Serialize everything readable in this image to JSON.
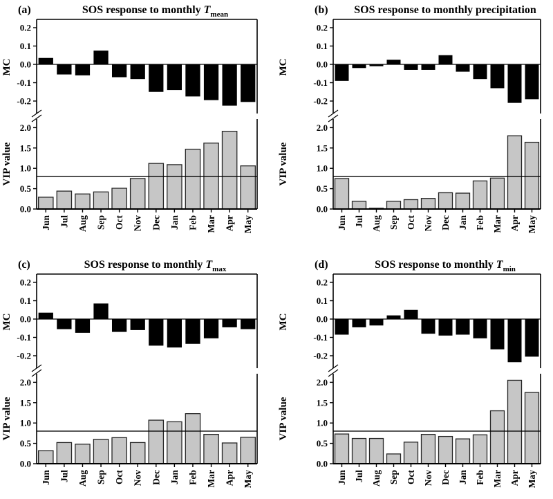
{
  "figure": {
    "description": "Four-panel bar chart figure: SOS response (MC and VIP value) to monthly climate variables",
    "colors": {
      "mc_bar": "#000000",
      "vip_bar_fill": "#c6c6c6",
      "vip_bar_stroke": "#262626",
      "axis": "#000000",
      "threshold_line": "#000000",
      "background": "#ffffff"
    }
  },
  "chart_data": [
    {
      "type": "bar",
      "panel_label": "(a)",
      "title": "SOS response to monthly",
      "title_math": {
        "var": "T",
        "sub": "mean"
      },
      "categories": [
        "Jun",
        "Jul",
        "Aug",
        "Sep",
        "Oct",
        "Nov",
        "Dec",
        "Jan",
        "Feb",
        "Mar",
        "Apr",
        "May"
      ],
      "axis_break": true,
      "legend": "none",
      "series": [
        {
          "name": "MC",
          "axis_label": "MC",
          "values": [
            0.035,
            -0.055,
            -0.06,
            0.075,
            -0.07,
            -0.08,
            -0.15,
            -0.14,
            -0.175,
            -0.195,
            -0.225,
            -0.205
          ],
          "ylim": [
            -0.25,
            0.25
          ],
          "ticks": [
            {
              "value": 0.2,
              "label": "0.2"
            },
            {
              "value": 0.1,
              "label": "0.1"
            },
            {
              "value": 0.0,
              "label": "0.0"
            },
            {
              "value": -0.1,
              "label": "-0.1"
            },
            {
              "value": -0.2,
              "label": "-0.2"
            }
          ]
        },
        {
          "name": "VIP value",
          "axis_label": "VIP value",
          "values": [
            0.29,
            0.44,
            0.37,
            0.42,
            0.51,
            0.75,
            1.12,
            1.09,
            1.47,
            1.62,
            1.91,
            1.06
          ],
          "ylim": [
            0,
            2.2
          ],
          "ref_line": 0.8,
          "ticks": [
            {
              "value": 2.0,
              "label": "2.0"
            },
            {
              "value": 1.5,
              "label": "1.5"
            },
            {
              "value": 1.0,
              "label": "1.0"
            },
            {
              "value": 0.5,
              "label": "0.5"
            },
            {
              "value": 0.0,
              "label": "0.0"
            }
          ]
        }
      ]
    },
    {
      "type": "bar",
      "panel_label": "(b)",
      "title": "SOS response to monthly precipitation",
      "title_math": null,
      "categories": [
        "Jun",
        "Jul",
        "Aug",
        "Sep",
        "Oct",
        "Nov",
        "Dec",
        "Jan",
        "Feb",
        "Mar",
        "Apr",
        "May"
      ],
      "axis_break": true,
      "legend": "none",
      "series": [
        {
          "name": "MC",
          "axis_label": "MC",
          "values": [
            -0.09,
            -0.02,
            -0.01,
            0.025,
            -0.03,
            -0.03,
            0.05,
            -0.04,
            -0.08,
            -0.13,
            -0.21,
            -0.19
          ],
          "ylim": [
            -0.25,
            0.25
          ],
          "ticks": [
            {
              "value": 0.2,
              "label": "0.2"
            },
            {
              "value": 0.1,
              "label": "0.1"
            },
            {
              "value": 0.0,
              "label": "0.0"
            },
            {
              "value": -0.1,
              "label": "-0.1"
            },
            {
              "value": -0.2,
              "label": "-0.2"
            }
          ]
        },
        {
          "name": "VIP value",
          "axis_label": "VIP value",
          "values": [
            0.75,
            0.19,
            0.02,
            0.19,
            0.23,
            0.26,
            0.4,
            0.39,
            0.69,
            0.76,
            1.8,
            1.64
          ],
          "ylim": [
            0,
            2.2
          ],
          "ref_line": 0.8,
          "ticks": [
            {
              "value": 2.0,
              "label": "2.0"
            },
            {
              "value": 1.5,
              "label": "1.5"
            },
            {
              "value": 1.0,
              "label": "1.0"
            },
            {
              "value": 0.5,
              "label": "0.5"
            },
            {
              "value": 0.0,
              "label": "0.0"
            }
          ]
        }
      ]
    },
    {
      "type": "bar",
      "panel_label": "(c)",
      "title": "SOS response to monthly",
      "title_math": {
        "var": "T",
        "sub": "max"
      },
      "categories": [
        "Jun",
        "Jul",
        "Aug",
        "Sep",
        "Oct",
        "Nov",
        "Dec",
        "Jan",
        "Feb",
        "Mar",
        "Apr",
        "May"
      ],
      "axis_break": true,
      "legend": "none",
      "series": [
        {
          "name": "MC",
          "axis_label": "MC",
          "values": [
            0.035,
            -0.055,
            -0.075,
            0.085,
            -0.07,
            -0.06,
            -0.145,
            -0.155,
            -0.135,
            -0.105,
            -0.045,
            -0.055
          ],
          "ylim": [
            -0.25,
            0.25
          ],
          "ticks": [
            {
              "value": 0.2,
              "label": "0.2"
            },
            {
              "value": 0.1,
              "label": "0.1"
            },
            {
              "value": 0.0,
              "label": "0.0"
            },
            {
              "value": -0.1,
              "label": "-0.1"
            },
            {
              "value": -0.2,
              "label": "-0.2"
            }
          ]
        },
        {
          "name": "VIP value",
          "axis_label": "VIP value",
          "values": [
            0.32,
            0.52,
            0.48,
            0.6,
            0.64,
            0.52,
            1.07,
            1.03,
            1.23,
            0.72,
            0.51,
            0.65
          ],
          "ylim": [
            0,
            2.2
          ],
          "ref_line": 0.8,
          "ticks": [
            {
              "value": 2.0,
              "label": "2.0"
            },
            {
              "value": 1.5,
              "label": "1.5"
            },
            {
              "value": 1.0,
              "label": "1.0"
            },
            {
              "value": 0.5,
              "label": "0.5"
            },
            {
              "value": 0.0,
              "label": "0.0"
            }
          ]
        }
      ]
    },
    {
      "type": "bar",
      "panel_label": "(d)",
      "title": "SOS response to monthly",
      "title_math": {
        "var": "T",
        "sub": "min"
      },
      "categories": [
        "Jun",
        "Jul",
        "Aug",
        "Sep",
        "Oct",
        "Nov",
        "Dec",
        "Jan",
        "Feb",
        "Mar",
        "Apr",
        "May"
      ],
      "axis_break": true,
      "legend": "none",
      "series": [
        {
          "name": "MC",
          "axis_label": "MC",
          "values": [
            -0.085,
            -0.045,
            -0.035,
            0.02,
            0.05,
            -0.08,
            -0.09,
            -0.085,
            -0.105,
            -0.165,
            -0.235,
            -0.205
          ],
          "ylim": [
            -0.25,
            0.25
          ],
          "ticks": [
            {
              "value": 0.2,
              "label": "0.2"
            },
            {
              "value": 0.1,
              "label": "0.1"
            },
            {
              "value": 0.0,
              "label": "0.0"
            },
            {
              "value": -0.1,
              "label": "-0.1"
            },
            {
              "value": -0.2,
              "label": "-0.2"
            }
          ]
        },
        {
          "name": "VIP value",
          "axis_label": "VIP value",
          "values": [
            0.73,
            0.62,
            0.62,
            0.24,
            0.53,
            0.72,
            0.67,
            0.61,
            0.71,
            1.3,
            2.05,
            1.75
          ],
          "ylim": [
            0,
            2.2
          ],
          "ref_line": 0.8,
          "ticks": [
            {
              "value": 2.0,
              "label": "2.0"
            },
            {
              "value": 1.5,
              "label": "1.5"
            },
            {
              "value": 1.0,
              "label": "1.0"
            },
            {
              "value": 0.5,
              "label": "0.5"
            },
            {
              "value": 0.0,
              "label": "0.0"
            }
          ]
        }
      ]
    }
  ]
}
